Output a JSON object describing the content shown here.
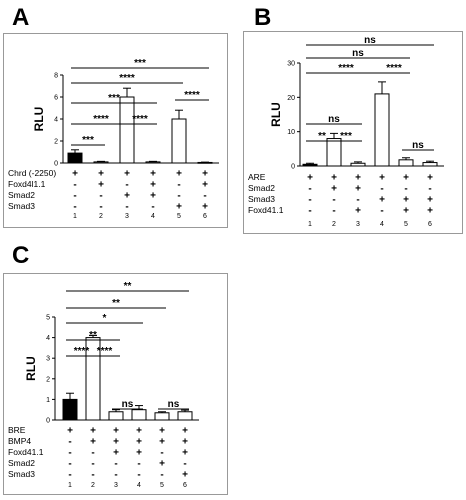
{
  "chart_data": [
    {
      "type": "bar",
      "panel": "A",
      "ylabel": "RLU",
      "ylim": [
        0,
        8
      ],
      "yticks": [
        "0",
        "2",
        "4",
        "6",
        "8"
      ],
      "lanes": [
        "1",
        "2",
        "3",
        "4",
        "5",
        "6"
      ],
      "values": [
        0.9,
        0.1,
        6.0,
        0.1,
        4.0,
        0.05
      ],
      "errors": [
        0.3,
        0.05,
        0.8,
        0.05,
        0.8,
        0.03
      ],
      "fills": [
        "#000000",
        "#ffffff",
        "#ffffff",
        "#ffffff",
        "#ffffff",
        "#ffffff"
      ],
      "rows": [
        {
          "label": "Chrd (-2250)",
          "symbols": [
            "+",
            "+",
            "+",
            "+",
            "+",
            "+"
          ]
        },
        {
          "label": "Foxd4l1.1",
          "symbols": [
            "-",
            "+",
            "-",
            "+",
            "-",
            "+"
          ]
        },
        {
          "label": "Smad2",
          "symbols": [
            "-",
            "-",
            "+",
            "+",
            "-",
            "-"
          ]
        },
        {
          "label": "Smad3",
          "symbols": [
            "-",
            "-",
            "-",
            "-",
            "+",
            "+"
          ]
        }
      ],
      "comparisons": [
        {
          "from": 1,
          "to": 2,
          "label": "***"
        },
        {
          "from": 1,
          "to": 3,
          "label": "****"
        },
        {
          "from": 3,
          "to": 4,
          "label": "****"
        },
        {
          "from": 1,
          "to": 4,
          "label": "***"
        },
        {
          "from": 1,
          "to": 5,
          "label": "****"
        },
        {
          "from": 1,
          "to": 6,
          "label": "***"
        },
        {
          "from": 5,
          "to": 6,
          "label": "****"
        }
      ]
    },
    {
      "type": "bar",
      "panel": "B",
      "ylabel": "RLU",
      "ylim": [
        0,
        30
      ],
      "yticks": [
        "0",
        "10",
        "20",
        "30"
      ],
      "lanes": [
        "1",
        "2",
        "3",
        "4",
        "5",
        "6"
      ],
      "values": [
        0.5,
        8.0,
        0.8,
        21.0,
        1.8,
        1.0
      ],
      "errors": [
        0.3,
        1.5,
        0.4,
        3.5,
        0.6,
        0.4
      ],
      "fills": [
        "#000000",
        "#ffffff",
        "#ffffff",
        "#ffffff",
        "#ffffff",
        "#ffffff"
      ],
      "rows": [
        {
          "label": "ARE",
          "symbols": [
            "+",
            "+",
            "+",
            "+",
            "+",
            "+"
          ]
        },
        {
          "label": "Smad2",
          "symbols": [
            "-",
            "+",
            "+",
            "-",
            "-",
            "-"
          ]
        },
        {
          "label": "Smad3",
          "symbols": [
            "-",
            "-",
            "-",
            "+",
            "+",
            "+"
          ]
        },
        {
          "label": "Foxd41.1",
          "symbols": [
            "-",
            "-",
            "+",
            "-",
            "+",
            "+"
          ]
        }
      ],
      "comparisons": [
        {
          "from": 1,
          "to": 2,
          "label": "**"
        },
        {
          "from": 2,
          "to": 3,
          "label": "***"
        },
        {
          "from": 1,
          "to": 3,
          "label": "ns"
        },
        {
          "from": 1,
          "to": 4,
          "label": "****"
        },
        {
          "from": 4,
          "to": 5,
          "label": "****"
        },
        {
          "from": 1,
          "to": 5,
          "label": "ns"
        },
        {
          "from": 1,
          "to": 6,
          "label": "ns"
        },
        {
          "from": 5,
          "to": 6,
          "label": "ns"
        }
      ]
    },
    {
      "type": "bar",
      "panel": "C",
      "ylabel": "RLU",
      "ylim": [
        0,
        5
      ],
      "yticks": [
        "0",
        "1",
        "2",
        "3",
        "4",
        "5"
      ],
      "lanes": [
        "1",
        "2",
        "3",
        "4",
        "5",
        "6"
      ],
      "values": [
        1.0,
        4.0,
        0.4,
        0.5,
        0.35,
        0.4
      ],
      "errors": [
        0.3,
        0.1,
        0.1,
        0.2,
        0.05,
        0.08
      ],
      "fills": [
        "#000000",
        "#ffffff",
        "#ffffff",
        "#ffffff",
        "#ffffff",
        "#ffffff"
      ],
      "rows": [
        {
          "label": "BRE",
          "symbols": [
            "+",
            "+",
            "+",
            "+",
            "+",
            "+"
          ]
        },
        {
          "label": "BMP4",
          "symbols": [
            "-",
            "+",
            "+",
            "+",
            "+",
            "+"
          ]
        },
        {
          "label": "Foxd41.1",
          "symbols": [
            "-",
            "-",
            "+",
            "+",
            "-",
            "+"
          ]
        },
        {
          "label": "Smad2",
          "symbols": [
            "-",
            "-",
            "-",
            "-",
            "+",
            "-"
          ]
        },
        {
          "label": "Smad3",
          "symbols": [
            "-",
            "-",
            "-",
            "-",
            "-",
            "+"
          ]
        }
      ],
      "comparisons": [
        {
          "from": 1,
          "to": 2,
          "label": "****"
        },
        {
          "from": 2,
          "to": 3,
          "label": "****"
        },
        {
          "from": 1,
          "to": 3,
          "label": "**"
        },
        {
          "from": 1,
          "to": 4,
          "label": "*"
        },
        {
          "from": 1,
          "to": 5,
          "label": "**"
        },
        {
          "from": 1,
          "to": 6,
          "label": "**"
        },
        {
          "from": 3,
          "to": 4,
          "label": "ns"
        },
        {
          "from": 5,
          "to": 6,
          "label": "ns"
        }
      ]
    }
  ]
}
